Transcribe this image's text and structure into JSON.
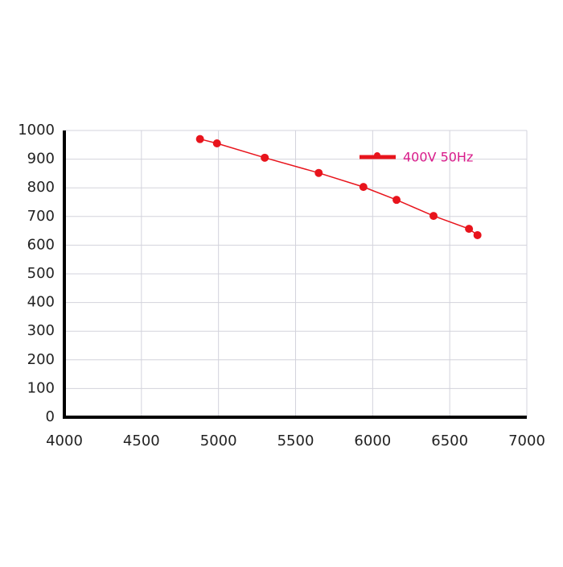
{
  "chart_data": {
    "type": "line",
    "x": [
      4880,
      4990,
      5300,
      5650,
      5940,
      6155,
      6395,
      6625,
      6680
    ],
    "series": [
      {
        "name": "400V 50Hz",
        "color": "#e8141c",
        "values": [
          970,
          955,
          905,
          852,
          803,
          758,
          702,
          657,
          635
        ]
      }
    ],
    "xlim": [
      4000,
      7000
    ],
    "xticks": [
      4000,
      4500,
      5000,
      5500,
      6000,
      6500,
      7000
    ],
    "ylim": [
      0,
      1000
    ],
    "yticks": [
      0,
      100,
      200,
      300,
      400,
      500,
      600,
      700,
      800,
      900,
      1000
    ],
    "grid": true,
    "markers": true,
    "legend": "upper right",
    "legend_text_color": "#d81b8a"
  }
}
